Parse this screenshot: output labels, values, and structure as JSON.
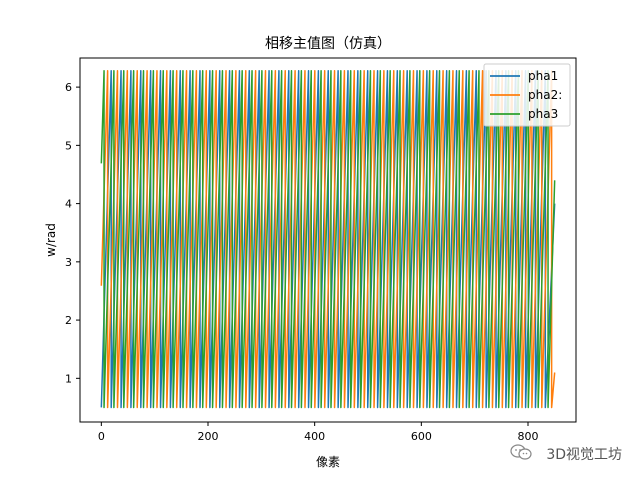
{
  "chart_data": {
    "type": "line",
    "title": "相移主值图（仿真）",
    "xlabel": "像素",
    "ylabel": "w/rad",
    "xlim": [
      -40,
      890
    ],
    "ylim": [
      0.25,
      6.5
    ],
    "xticks": [
      0,
      200,
      400,
      600,
      800
    ],
    "yticks": [
      1,
      2,
      3,
      4,
      5,
      6
    ],
    "wrap_min": 0.5,
    "wrap_max": 6.28,
    "period_px": 18.5,
    "x_range": [
      0,
      850
    ],
    "series": [
      {
        "name": "pha1",
        "color": "#1f77b4",
        "phase_offset": 0.0,
        "end_value": 4.0
      },
      {
        "name": "pha2:",
        "color": "#ff7f0e",
        "phase_offset": 2.09,
        "end_value": 1.1
      },
      {
        "name": "pha3",
        "color": "#2ca02c",
        "phase_offset": 4.19,
        "end_value": 4.4
      }
    ],
    "legend_position": "top-right",
    "grid": false
  },
  "watermark": {
    "text": "3D视觉工坊",
    "icon": "wechat-icon"
  }
}
